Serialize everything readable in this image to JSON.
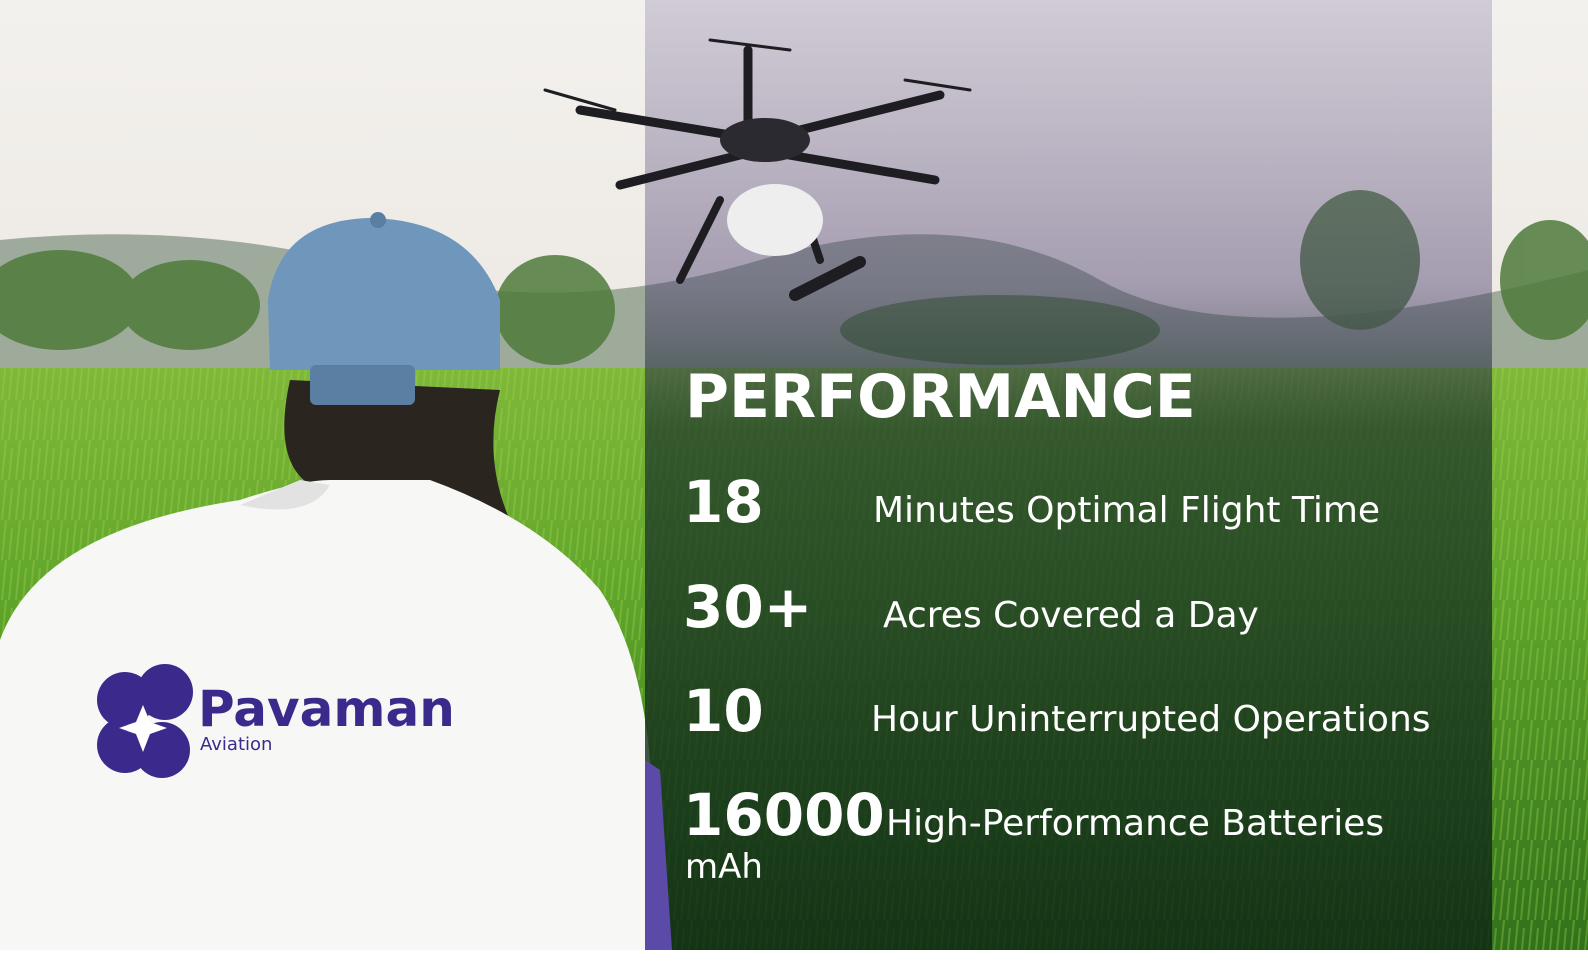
{
  "logo": {
    "name": "Pavaman",
    "tagline": "Aviation"
  },
  "panel": {
    "title": "PERFORMANCE",
    "stats": [
      {
        "value": "18",
        "label": "Minutes Optimal Flight Time"
      },
      {
        "value": "30+",
        "label": "Acres Covered a Day"
      },
      {
        "value": "10",
        "label": "Hour Uninterrupted Operations"
      },
      {
        "value": "16000",
        "unit": "mAh",
        "label": "High-Performance Batteries"
      }
    ]
  }
}
